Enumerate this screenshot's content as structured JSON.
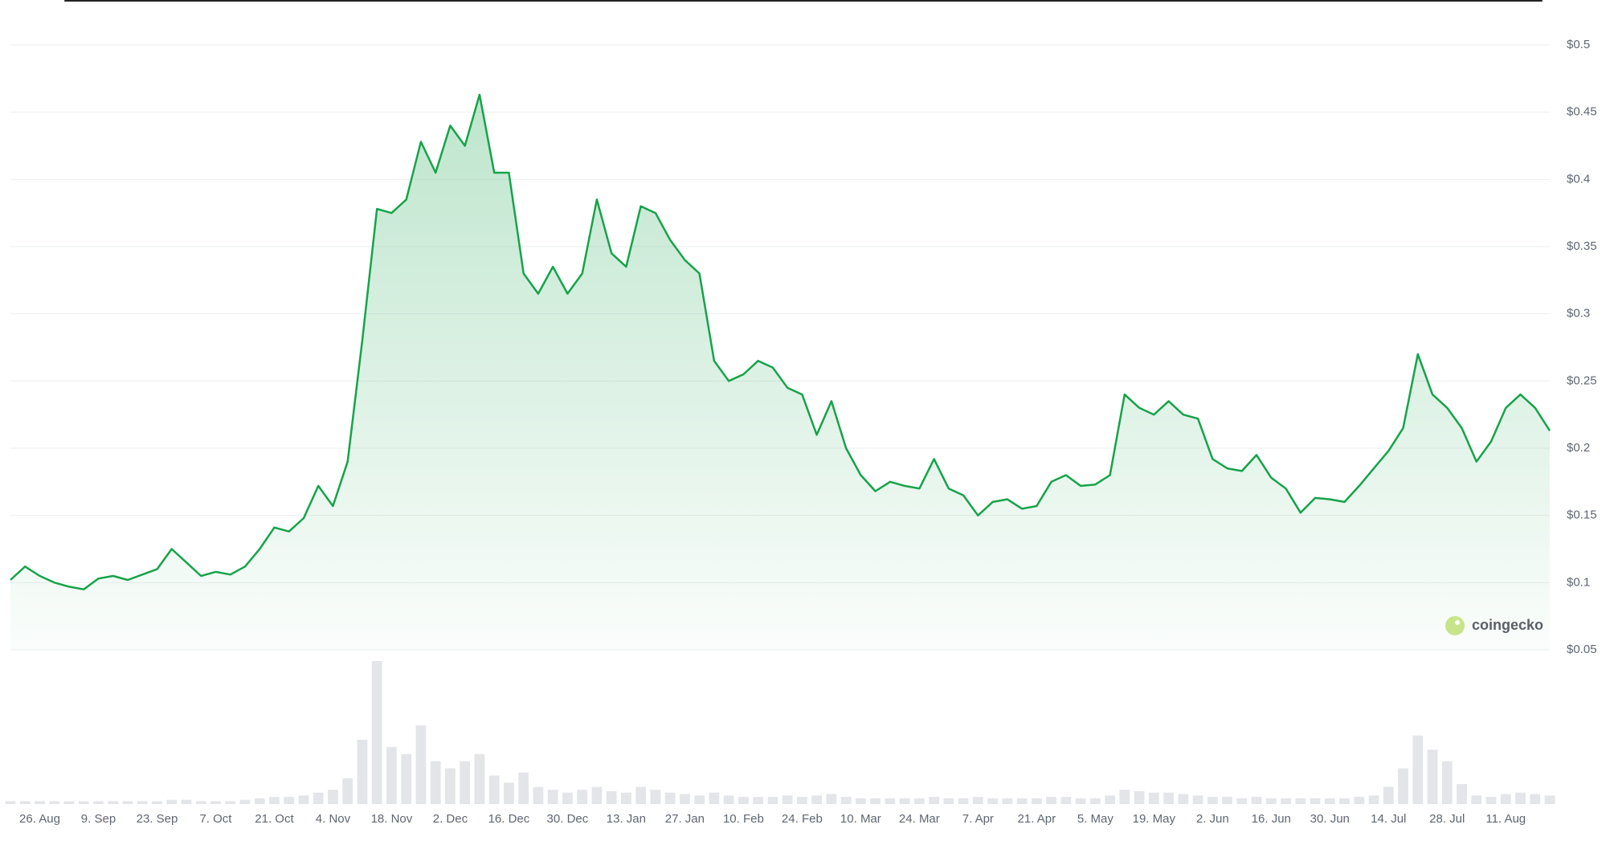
{
  "chart_data": {
    "type": "line",
    "watermark": "coingecko",
    "color": "#16a34a",
    "grid": true,
    "categories": [
      null,
      null,
      "26. Aug",
      null,
      null,
      null,
      "9. Sep",
      null,
      null,
      null,
      "23. Sep",
      null,
      null,
      null,
      "7. Oct",
      null,
      null,
      null,
      "21. Oct",
      null,
      null,
      null,
      "4. Nov",
      null,
      null,
      null,
      "18. Nov",
      null,
      null,
      null,
      "2. Dec",
      null,
      null,
      null,
      "16. Dec",
      null,
      null,
      null,
      "30. Dec",
      null,
      null,
      null,
      "13. Jan",
      null,
      null,
      null,
      "27. Jan",
      null,
      null,
      null,
      "10. Feb",
      null,
      null,
      null,
      "24. Feb",
      null,
      null,
      null,
      "10. Mar",
      null,
      null,
      null,
      "24. Mar",
      null,
      null,
      null,
      "7. Apr",
      null,
      null,
      null,
      "21. Apr",
      null,
      null,
      null,
      "5. May",
      null,
      null,
      null,
      "19. May",
      null,
      null,
      null,
      "2. Jun",
      null,
      null,
      null,
      "16. Jun",
      null,
      null,
      null,
      "30. Jun",
      null,
      null,
      null,
      "14. Jul",
      null,
      null,
      null,
      "28. Jul",
      null,
      null,
      null,
      "11. Aug",
      null,
      null,
      null
    ],
    "values": [
      0.102,
      0.112,
      0.105,
      0.1,
      0.097,
      0.095,
      0.103,
      0.105,
      0.102,
      0.106,
      0.11,
      0.125,
      0.115,
      0.105,
      0.108,
      0.106,
      0.112,
      0.125,
      0.141,
      0.138,
      0.148,
      0.172,
      0.157,
      0.19,
      0.28,
      0.378,
      0.375,
      0.385,
      0.428,
      0.405,
      0.44,
      0.425,
      0.463,
      0.405,
      0.405,
      0.33,
      0.315,
      0.335,
      0.315,
      0.33,
      0.385,
      0.345,
      0.335,
      0.38,
      0.375,
      0.355,
      0.34,
      0.33,
      0.265,
      0.25,
      0.255,
      0.265,
      0.26,
      0.245,
      0.24,
      0.21,
      0.235,
      0.2,
      0.18,
      0.168,
      0.175,
      0.172,
      0.17,
      0.192,
      0.17,
      0.165,
      0.15,
      0.16,
      0.162,
      0.155,
      0.157,
      0.175,
      0.18,
      0.172,
      0.173,
      0.18,
      0.24,
      0.23,
      0.225,
      0.235,
      0.225,
      0.222,
      0.192,
      0.185,
      0.183,
      0.195,
      0.178,
      0.17,
      0.152,
      0.163,
      0.162,
      0.16,
      0.172,
      0.185,
      0.198,
      0.215,
      0.27,
      0.24,
      0.23,
      0.215,
      0.19,
      0.205,
      0.23,
      0.24,
      0.23,
      0.213
    ],
    "volume": [
      2,
      2,
      2,
      2,
      2,
      2,
      2,
      2,
      2,
      2,
      2,
      3,
      3,
      2,
      2,
      2,
      3,
      4,
      5,
      5,
      6,
      8,
      10,
      18,
      45,
      100,
      40,
      35,
      55,
      30,
      25,
      30,
      35,
      20,
      15,
      22,
      12,
      10,
      8,
      10,
      12,
      9,
      8,
      12,
      10,
      8,
      7,
      6,
      8,
      6,
      5,
      5,
      5,
      6,
      5,
      6,
      7,
      5,
      4,
      4,
      4,
      4,
      4,
      5,
      4,
      4,
      5,
      4,
      4,
      4,
      4,
      5,
      5,
      4,
      4,
      6,
      10,
      9,
      8,
      8,
      7,
      6,
      5,
      5,
      4,
      5,
      4,
      4,
      4,
      4,
      4,
      4,
      5,
      6,
      12,
      25,
      48,
      38,
      30,
      14,
      6,
      5,
      7,
      8,
      7,
      6
    ],
    "ylim": [
      0.05,
      0.5
    ],
    "yticks": [
      {
        "value": 0.05,
        "label": "$0.05"
      },
      {
        "value": 0.1,
        "label": "$0.1"
      },
      {
        "value": 0.15,
        "label": "$0.15"
      },
      {
        "value": 0.2,
        "label": "$0.2"
      },
      {
        "value": 0.25,
        "label": "$0.25"
      },
      {
        "value": 0.3,
        "label": "$0.3"
      },
      {
        "value": 0.35,
        "label": "$0.35"
      },
      {
        "value": 0.4,
        "label": "$0.4"
      },
      {
        "value": 0.45,
        "label": "$0.45"
      },
      {
        "value": 0.5,
        "label": "$0.5"
      }
    ]
  }
}
